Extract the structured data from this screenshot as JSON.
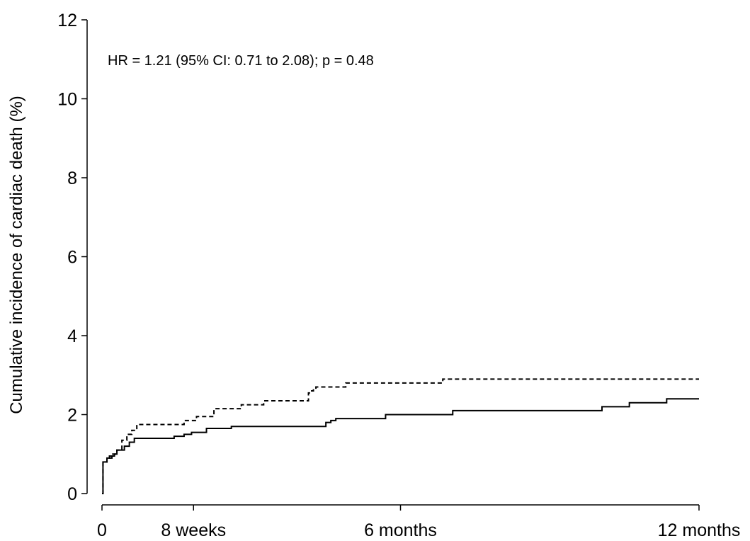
{
  "chart_data": {
    "type": "line",
    "title": "",
    "xlabel": "",
    "ylabel": "Cumulative incidence of cardiac death (%)",
    "xlim": [
      0,
      12
    ],
    "ylim": [
      0,
      12
    ],
    "x_unit": "months",
    "x_ticks": [
      {
        "value": 0,
        "label": "0"
      },
      {
        "value": 1.84,
        "label": "8 weeks"
      },
      {
        "value": 6,
        "label": "6 months"
      },
      {
        "value": 12,
        "label": "12 months"
      }
    ],
    "y_ticks": [
      {
        "value": 0,
        "label": "0"
      },
      {
        "value": 2,
        "label": "2"
      },
      {
        "value": 4,
        "label": "4"
      },
      {
        "value": 6,
        "label": "6"
      },
      {
        "value": 8,
        "label": "8"
      },
      {
        "value": 10,
        "label": "10"
      },
      {
        "value": 12,
        "label": "12"
      }
    ],
    "annotation": "HR = 1.21 (95% CI: 0.71 to 2.08); p = 0.48",
    "grid": false,
    "legend": "none",
    "series": [
      {
        "style": "dashed",
        "color": "#000000",
        "points": [
          [
            0,
            0
          ],
          [
            0.02,
            0.8
          ],
          [
            0.1,
            0.9
          ],
          [
            0.2,
            1.0
          ],
          [
            0.3,
            1.1
          ],
          [
            0.4,
            1.35
          ],
          [
            0.5,
            1.5
          ],
          [
            0.6,
            1.6
          ],
          [
            0.7,
            1.75
          ],
          [
            1.35,
            1.75
          ],
          [
            1.65,
            1.85
          ],
          [
            1.85,
            1.85
          ],
          [
            1.9,
            1.95
          ],
          [
            2.2,
            1.95
          ],
          [
            2.25,
            2.15
          ],
          [
            2.75,
            2.15
          ],
          [
            2.8,
            2.25
          ],
          [
            3.2,
            2.25
          ],
          [
            3.25,
            2.35
          ],
          [
            4.1,
            2.35
          ],
          [
            4.15,
            2.55
          ],
          [
            4.2,
            2.6
          ],
          [
            4.25,
            2.65
          ],
          [
            4.3,
            2.7
          ],
          [
            4.5,
            2.7
          ],
          [
            4.85,
            2.7
          ],
          [
            4.9,
            2.8
          ],
          [
            6.8,
            2.8
          ],
          [
            6.85,
            2.9
          ],
          [
            12,
            2.9
          ]
        ]
      },
      {
        "style": "solid",
        "color": "#000000",
        "points": [
          [
            0,
            0
          ],
          [
            0.02,
            0.8
          ],
          [
            0.1,
            0.9
          ],
          [
            0.15,
            0.95
          ],
          [
            0.25,
            1.0
          ],
          [
            0.3,
            1.1
          ],
          [
            0.45,
            1.2
          ],
          [
            0.55,
            1.3
          ],
          [
            0.65,
            1.4
          ],
          [
            1.35,
            1.4
          ],
          [
            1.45,
            1.45
          ],
          [
            1.65,
            1.5
          ],
          [
            1.75,
            1.5
          ],
          [
            1.8,
            1.55
          ],
          [
            2.05,
            1.55
          ],
          [
            2.1,
            1.65
          ],
          [
            2.55,
            1.65
          ],
          [
            2.6,
            1.7
          ],
          [
            3.6,
            1.7
          ],
          [
            4.45,
            1.7
          ],
          [
            4.5,
            1.8
          ],
          [
            4.6,
            1.85
          ],
          [
            4.7,
            1.9
          ],
          [
            5.65,
            1.9
          ],
          [
            5.7,
            2.0
          ],
          [
            7.0,
            2.0
          ],
          [
            7.05,
            2.1
          ],
          [
            10.0,
            2.1
          ],
          [
            10.05,
            2.2
          ],
          [
            10.55,
            2.2
          ],
          [
            10.6,
            2.3
          ],
          [
            11.3,
            2.3
          ],
          [
            11.35,
            2.4
          ],
          [
            12,
            2.4
          ]
        ]
      }
    ]
  }
}
